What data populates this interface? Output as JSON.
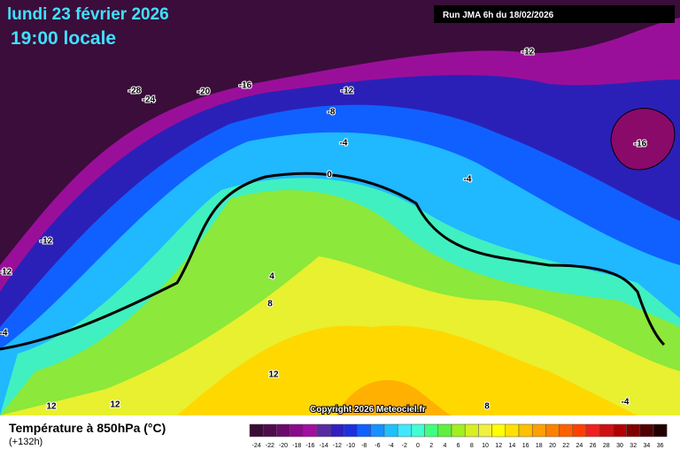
{
  "header": {
    "date": "lundi 23 février 2026",
    "time": "19:00 locale",
    "run": "Run JMA 6h du 18/02/2026"
  },
  "map": {
    "contour_labels": [
      "-28",
      "-24",
      "-20",
      "-16",
      "-12",
      "-12",
      "-8",
      "-4",
      "-4",
      "0",
      "-16",
      "-12",
      "-12",
      "-4",
      "4",
      "8",
      "12",
      "12",
      "12",
      "8",
      "-4"
    ],
    "copyright": "Copyright 2026 Meteociel.fr"
  },
  "legend": {
    "title": "Température à 850hPa (°C)",
    "subtitle": "(+132h)",
    "ticks": [
      "-24",
      "-22",
      "-20",
      "-18",
      "-16",
      "-14",
      "-12",
      "-10",
      "-8",
      "-6",
      "-4",
      "-2",
      "0",
      "2",
      "4",
      "6",
      "8",
      "10",
      "12",
      "14",
      "16",
      "18",
      "20",
      "22",
      "24",
      "26",
      "28",
      "30",
      "32",
      "34",
      "36"
    ],
    "colors": [
      "#3a0c36",
      "#4f0c4c",
      "#6b0a6b",
      "#8c0a8c",
      "#a010a0",
      "#5a2aa0",
      "#3020c0",
      "#1a30e0",
      "#1060ff",
      "#1890ff",
      "#20c0ff",
      "#40e8ff",
      "#40ffd0",
      "#40ff80",
      "#60f040",
      "#a0f020",
      "#d8f020",
      "#f0f040",
      "#ffff00",
      "#ffe000",
      "#ffc000",
      "#ffa000",
      "#ff8000",
      "#ff6000",
      "#ff4000",
      "#f02020",
      "#d01010",
      "#b00000",
      "#800000",
      "#500000",
      "#200000"
    ]
  }
}
